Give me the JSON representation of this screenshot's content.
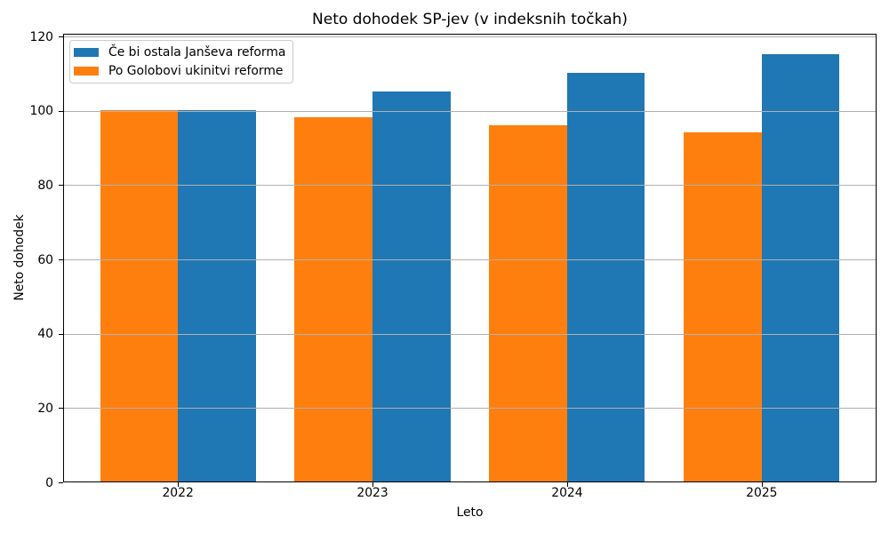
{
  "chart_data": {
    "type": "bar",
    "title": "Neto dohodek SP-jev (v indeksnih točkah)",
    "xlabel": "Leto",
    "ylabel": "Neto dohodek",
    "categories": [
      "2022",
      "2023",
      "2024",
      "2025"
    ],
    "series": [
      {
        "name": "Če bi ostala Janševa reforma",
        "color": "#1f77b4",
        "values": [
          100,
          105,
          110,
          115
        ],
        "offset": 0.2
      },
      {
        "name": "Po Golobovi ukinitvi reforme",
        "color": "#ff7f0e",
        "values": [
          100,
          98,
          96,
          94
        ],
        "offset": -0.2
      }
    ],
    "bar_width": 0.4,
    "xlim": [
      -0.59,
      3.59
    ],
    "ylim": [
      0,
      120.75
    ],
    "yticks": [
      0,
      20,
      40,
      60,
      80,
      100,
      120
    ],
    "grid": {
      "axis": "y",
      "color": "#b0b0b0",
      "drawn_above_bars": true
    },
    "legend": {
      "position": "upper left",
      "border_color": "#cccccc",
      "background": "#ffffff"
    },
    "axis_color": "#000000",
    "text_color": "#000000",
    "background": "#ffffff"
  }
}
